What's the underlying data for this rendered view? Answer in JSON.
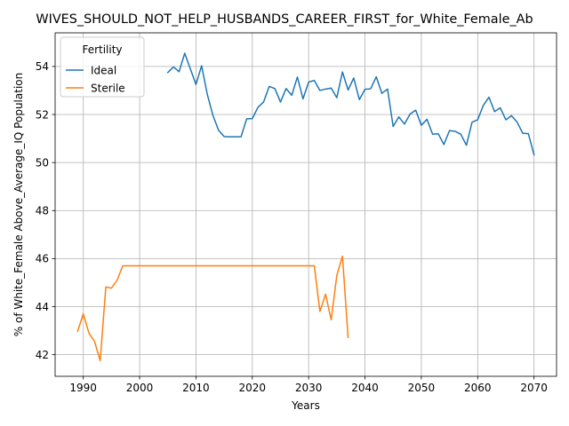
{
  "chart_data": {
    "type": "line",
    "title": "WIVES_SHOULD_NOT_HELP_HUSBANDS_CAREER_FIRST_for_White_Female_Ab",
    "xlabel": "Years",
    "ylabel": "% of White_Female Above_Average_IQ Population",
    "xlim": [
      1985,
      2074
    ],
    "ylim": [
      41.1,
      55.4
    ],
    "xticks": [
      1990,
      2000,
      2010,
      2020,
      2030,
      2040,
      2050,
      2060,
      2070
    ],
    "yticks": [
      42,
      44,
      46,
      48,
      50,
      52,
      54
    ],
    "grid": true,
    "legend": {
      "title": "Fertility",
      "placement": "top-left"
    },
    "series": [
      {
        "name": "Ideal",
        "color": "#1f77b4",
        "x": [
          2005,
          2006,
          2007,
          2008,
          2009,
          2010,
          2011,
          2012,
          2013,
          2014,
          2015,
          2016,
          2017,
          2018,
          2019,
          2020,
          2021,
          2022,
          2023,
          2024,
          2025,
          2026,
          2027,
          2028,
          2029,
          2030,
          2031,
          2032,
          2033,
          2034,
          2035,
          2036,
          2037,
          2038,
          2039,
          2040,
          2041,
          2042,
          2043,
          2044,
          2045,
          2046,
          2047,
          2048,
          2049,
          2050,
          2051,
          2052,
          2053,
          2054,
          2055,
          2056,
          2057,
          2058,
          2059,
          2060,
          2061,
          2062,
          2063,
          2064,
          2065,
          2066,
          2067,
          2068,
          2069,
          2070
        ],
        "y": [
          53.75,
          53.98,
          53.78,
          54.55,
          53.9,
          53.25,
          54.03,
          52.85,
          51.97,
          51.35,
          51.08,
          51.07,
          51.07,
          51.07,
          51.82,
          51.83,
          52.3,
          52.52,
          53.17,
          53.08,
          52.52,
          53.08,
          52.8,
          53.56,
          52.65,
          53.35,
          53.42,
          53.0,
          53.06,
          53.1,
          52.7,
          53.77,
          53.02,
          53.52,
          52.62,
          53.05,
          53.07,
          53.57,
          52.88,
          53.06,
          51.5,
          51.9,
          51.6,
          52.02,
          52.18,
          51.55,
          51.8,
          51.18,
          51.2,
          50.75,
          51.33,
          51.3,
          51.18,
          50.72,
          51.68,
          51.78,
          52.38,
          52.72,
          52.12,
          52.28,
          51.78,
          51.95,
          51.68,
          51.22,
          51.2,
          50.32
        ]
      },
      {
        "name": "Sterile",
        "color": "#ff7f0e",
        "x": [
          1989,
          1990,
          1991,
          1992,
          1993,
          1994,
          1995,
          1996,
          1997,
          1998,
          1999,
          2000,
          2001,
          2002,
          2003,
          2004,
          2005,
          2006,
          2007,
          2008,
          2009,
          2010,
          2011,
          2012,
          2013,
          2014,
          2015,
          2016,
          2017,
          2018,
          2019,
          2020,
          2021,
          2022,
          2023,
          2024,
          2025,
          2026,
          2027,
          2028,
          2029,
          2030,
          2031,
          2032,
          2033,
          2034,
          2035,
          2036,
          2037
        ],
        "y": [
          42.98,
          43.7,
          42.9,
          42.55,
          41.75,
          44.82,
          44.77,
          45.1,
          45.7,
          45.7,
          45.7,
          45.7,
          45.7,
          45.7,
          45.7,
          45.7,
          45.7,
          45.7,
          45.7,
          45.7,
          45.7,
          45.7,
          45.7,
          45.7,
          45.7,
          45.7,
          45.7,
          45.7,
          45.7,
          45.7,
          45.7,
          45.7,
          45.7,
          45.7,
          45.7,
          45.7,
          45.7,
          45.7,
          45.7,
          45.7,
          45.7,
          45.7,
          45.7,
          43.8,
          44.52,
          43.45,
          45.3,
          46.1,
          42.72
        ]
      }
    ]
  }
}
